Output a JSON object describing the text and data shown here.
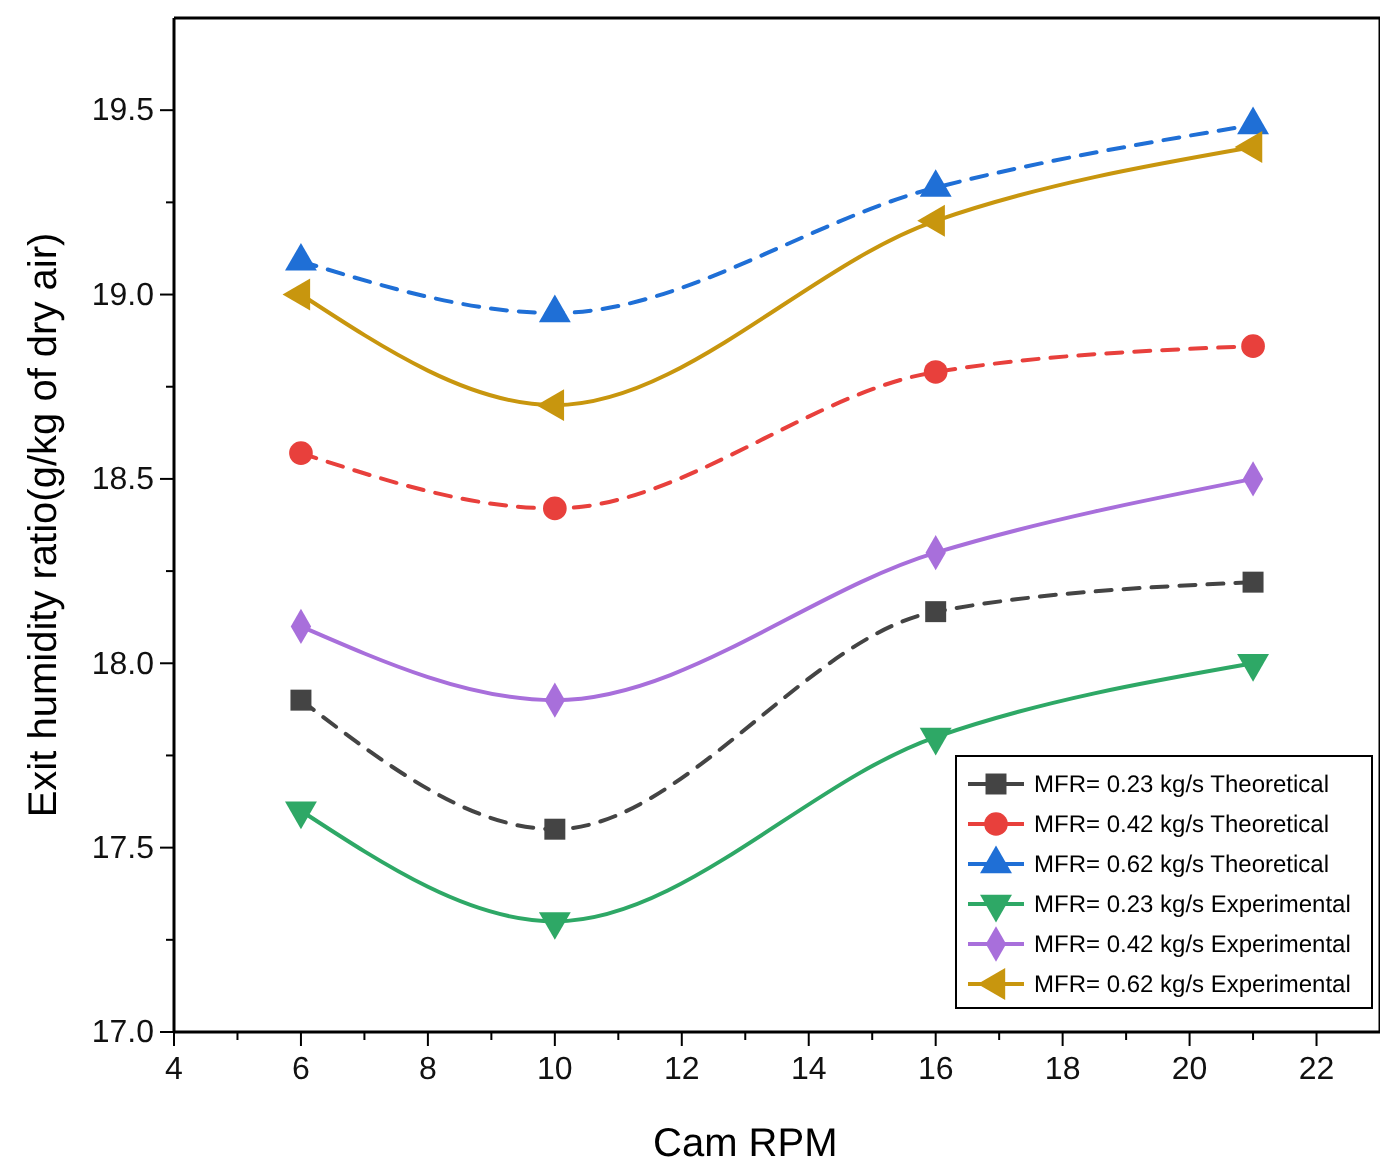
{
  "chart_data": {
    "type": "line",
    "xlabel": "Cam RPM",
    "ylabel": "Exit humidity ratio(g/kg of dry air)",
    "x": [
      6,
      10,
      16,
      21
    ],
    "xlim": [
      4,
      23
    ],
    "xticks": [
      4,
      {
        "value": 5,
        "label": null
      },
      6,
      {
        "value": 7,
        "label": null
      },
      8,
      {
        "value": 9,
        "label": null
      },
      10,
      {
        "value": 11,
        "label": null
      },
      12,
      {
        "value": 13,
        "label": null
      },
      14,
      {
        "value": 15,
        "label": null
      },
      16,
      {
        "value": 17,
        "label": null
      },
      18,
      {
        "value": 19,
        "label": null
      },
      20,
      {
        "value": 21,
        "label": null
      },
      22
    ],
    "ylim": [
      17.0,
      19.75
    ],
    "yticks": [
      {
        "value": 17.0,
        "label": "17.0"
      },
      {
        "value": 17.25,
        "label": null
      },
      {
        "value": 17.5,
        "label": "17.5"
      },
      {
        "value": 17.75,
        "label": null
      },
      {
        "value": 18.0,
        "label": "18.0"
      },
      {
        "value": 18.25,
        "label": null
      },
      {
        "value": 18.5,
        "label": "18.5"
      },
      {
        "value": 18.75,
        "label": null
      },
      {
        "value": 19.0,
        "label": "19.0"
      },
      {
        "value": 19.25,
        "label": null
      },
      {
        "value": 19.5,
        "label": "19.5"
      }
    ],
    "grid": false,
    "legend": "bottom right",
    "series": [
      {
        "name": "MFR= 0.23 kg/s Theoretical",
        "color": "#444444",
        "marker": "square",
        "line_style": "dashed",
        "values": [
          17.9,
          17.55,
          18.14,
          18.22
        ]
      },
      {
        "name": "MFR= 0.42 kg/s Theoretical",
        "color": "#e8403c",
        "marker": "circle",
        "line_style": "dashed",
        "values": [
          18.57,
          18.42,
          18.79,
          18.86
        ]
      },
      {
        "name": "MFR= 0.62 kg/s Theoretical",
        "color": "#1f6fd6",
        "marker": "triangle",
        "line_style": "dashed",
        "values": [
          19.09,
          18.95,
          19.29,
          19.46
        ]
      },
      {
        "name": "MFR= 0.23 kg/s Experimental",
        "color": "#2ea866",
        "marker": "triangle-down",
        "line_style": "solid",
        "values": [
          17.6,
          17.3,
          17.8,
          18.0
        ]
      },
      {
        "name": "MFR= 0.42 kg/s Experimental",
        "color": "#a86fdb",
        "marker": "diamond",
        "line_style": "solid",
        "values": [
          18.1,
          17.9,
          18.3,
          18.5
        ]
      },
      {
        "name": "MFR= 0.62 kg/s Experimental",
        "color": "#c8960e",
        "marker": "triangle-left",
        "line_style": "solid",
        "values": [
          19.0,
          18.7,
          19.2,
          19.4
        ]
      }
    ]
  }
}
